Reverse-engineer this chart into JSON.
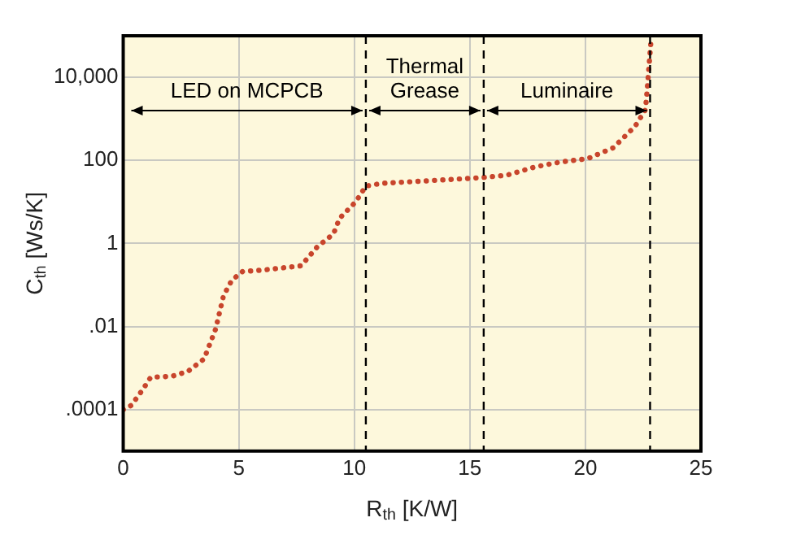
{
  "chart_data": {
    "type": "line",
    "xlabel": "R$_{th}$ [K/W]",
    "ylabel": "C$_{th}$ [Ws/K]",
    "x": [
      0,
      0.35,
      0.84,
      1.19,
      2.1,
      2.8,
      3.5,
      4.0,
      4.34,
      4.7,
      5.16,
      6.1,
      7.7,
      8.4,
      9.1,
      9.36,
      10.06,
      10.5,
      11.2,
      13.1,
      15.4,
      16.6,
      17.8,
      18.9,
      20.1,
      21.2,
      22.15,
      22.6,
      22.7,
      22.85
    ],
    "series": [
      {
        "color": "#c8452c",
        "values": [
          0.0001,
          0.000126,
          0.0003,
          0.0006,
          0.00063,
          0.00083,
          0.00166,
          0.0087,
          0.055,
          0.13,
          0.21,
          0.23,
          0.29,
          0.83,
          1.7,
          4,
          10,
          24,
          28,
          32,
          38,
          44,
          69,
          91,
          110,
          200,
          660,
          1660,
          7600,
          91000
        ]
      }
    ],
    "xlim": [
      0,
      25
    ],
    "xticks": [
      0,
      5,
      10,
      15,
      20,
      25
    ],
    "ylim": [
      1e-05,
      100000
    ],
    "yticks": [
      {
        "value": 0.0001,
        "label": ".0001"
      },
      {
        "value": 0.01,
        "label": ".01"
      },
      1,
      100,
      {
        "value": 10000,
        "label": "10,000"
      }
    ],
    "log": "y",
    "grid": true,
    "legend": false,
    "marker": "none",
    "line_style": "dotted",
    "ref_lines": [
      {
        "axis": "x",
        "value": 10.5,
        "line_style": "dashed",
        "color": "#000000"
      },
      {
        "axis": "x",
        "value": 15.6,
        "line_style": "dashed",
        "color": "#000000"
      },
      {
        "axis": "x",
        "value": 22.8,
        "line_style": "dashed",
        "color": "#000000"
      }
    ],
    "annotations": [
      "LED on MCPCB",
      "Thermal Grease",
      "Luminaire"
    ]
  }
}
